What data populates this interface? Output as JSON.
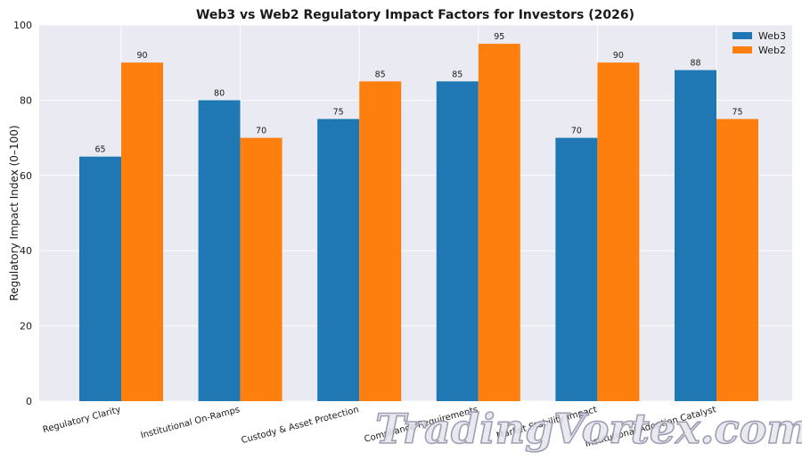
{
  "chart_data": {
    "type": "bar",
    "title": "Web3 vs Web2 Regulatory Impact Factors for Investors (2026)",
    "ylabel": "Regulatory Impact Index (0–100)",
    "xlabel": "",
    "ylim": [
      0,
      100
    ],
    "yticks": [
      0,
      20,
      40,
      60,
      80,
      100
    ],
    "grid": true,
    "legend_position": "top-right",
    "categories": [
      "Regulatory Clarity",
      "Institutional On-Ramps",
      "Custody & Asset Protection",
      "Compliance Requirements",
      "Market Stability Impact",
      "Institutional Adoption Catalyst"
    ],
    "series": [
      {
        "name": "Web3",
        "color": "#1f77b4",
        "values": [
          65,
          80,
          75,
          85,
          70,
          88
        ]
      },
      {
        "name": "Web2",
        "color": "#ff7f0e",
        "values": [
          90,
          70,
          85,
          95,
          90,
          75
        ]
      }
    ]
  },
  "watermark": "TradingVortex.com"
}
